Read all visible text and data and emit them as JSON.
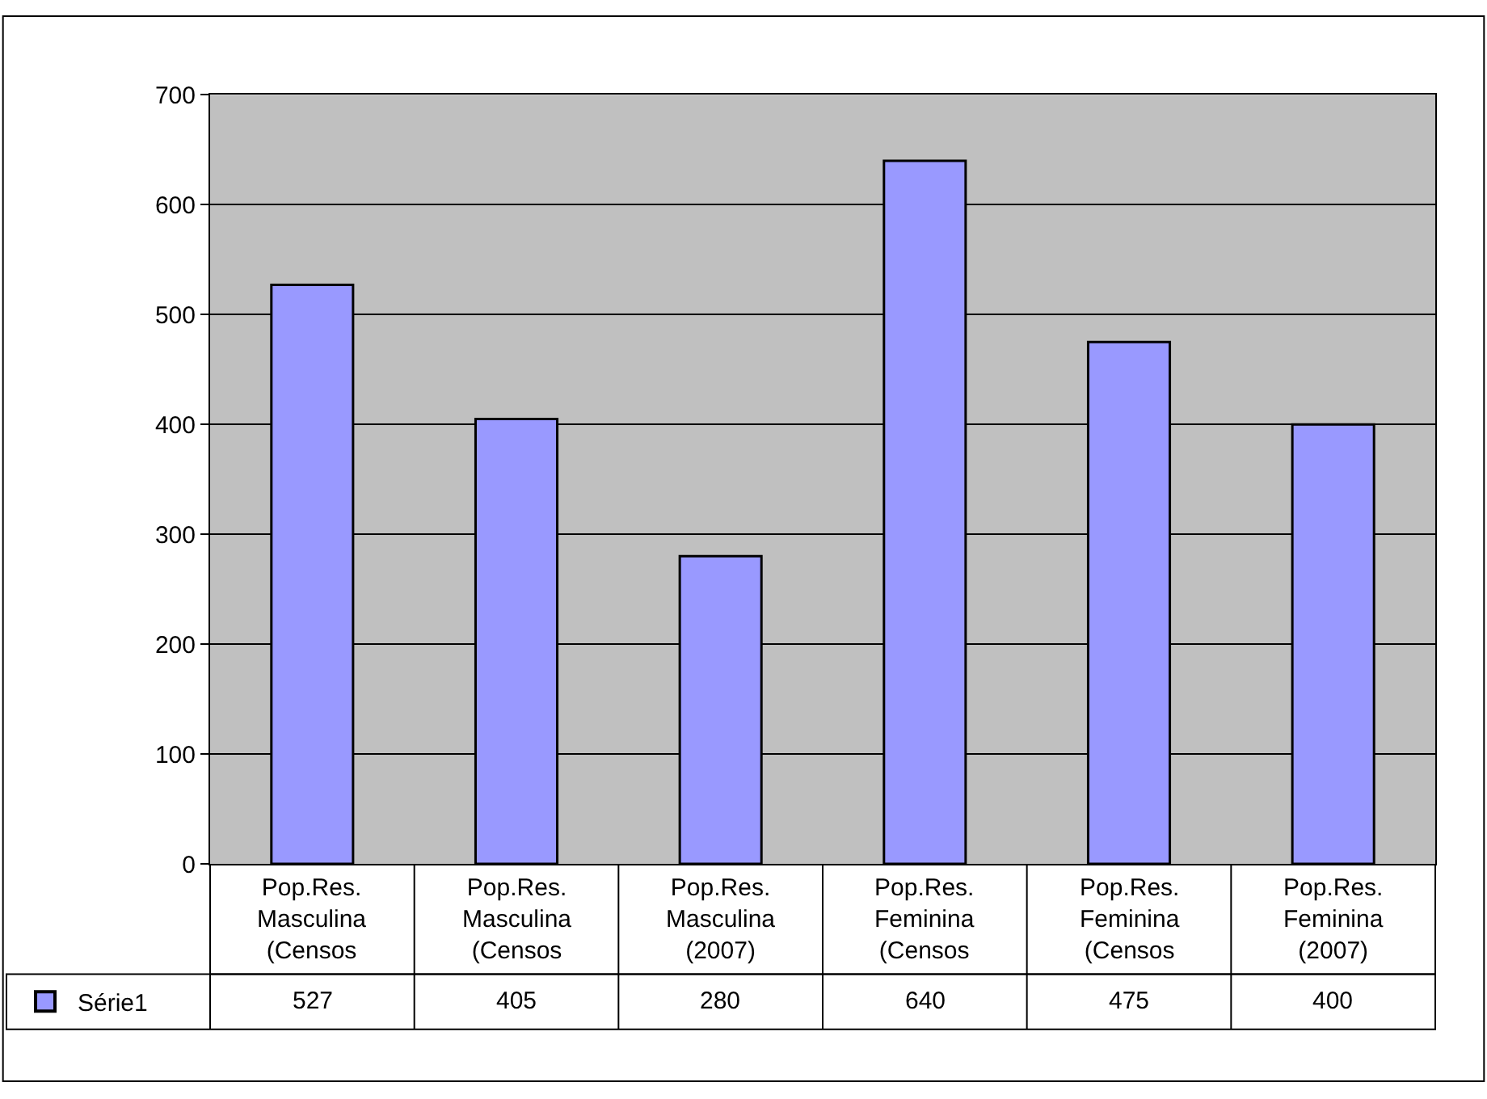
{
  "chart_data": {
    "type": "bar",
    "categories": [
      "Pop.Res. Masculina (Censos",
      "Pop.Res. Masculina (Censos",
      "Pop.Res. Masculina (2007)",
      "Pop.Res. Feminina (Censos",
      "Pop.Res. Feminina (Censos",
      "Pop.Res. Feminina (2007)"
    ],
    "series": [
      {
        "name": "Série1",
        "color": "#9999ff",
        "values": [
          527,
          405,
          280,
          640,
          475,
          400
        ]
      }
    ],
    "ylim": [
      0,
      700
    ],
    "yticks": [
      0,
      100,
      200,
      300,
      400,
      500,
      600,
      700
    ],
    "grid": "y",
    "legend": "bottom",
    "data_labels": true
  }
}
